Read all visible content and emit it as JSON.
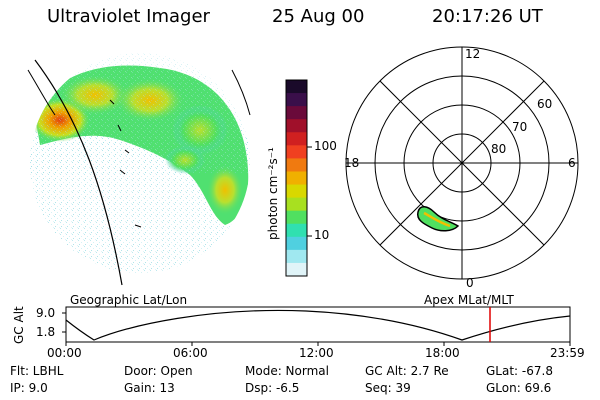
{
  "header": {
    "instrument": "Ultraviolet Imager",
    "date": "25 Aug 00",
    "time": "20:17:26 UT"
  },
  "colorbar": {
    "label": "photon cm⁻²s⁻¹",
    "ticks": [
      "100",
      "10"
    ],
    "colors": [
      "#1a0a2a",
      "#3a0f4a",
      "#6a0a3a",
      "#a0102a",
      "#d02020",
      "#f04020",
      "#f07a10",
      "#f0b000",
      "#d8d800",
      "#a8e020",
      "#50e060",
      "#30e0b0",
      "#50d0e0",
      "#a0e8f0",
      "#e0f4f8"
    ]
  },
  "polar": {
    "mlt_labels": [
      "12",
      "18",
      "6",
      "0"
    ],
    "lat_labels": [
      "60",
      "70",
      "80"
    ]
  },
  "map_labels": {
    "left": "Geographic Lat/Lon",
    "right": "Apex MLat/MLT"
  },
  "timeline": {
    "axis_label": "GC Alt",
    "y_ticks": [
      "9.0",
      "1.8"
    ],
    "x_ticks": [
      "00:00",
      "06:00",
      "12:00",
      "18:00",
      "23:59"
    ],
    "marker_color": "#e00000"
  },
  "status": {
    "flt": "Flt: LBHL",
    "ip": "IP:  9.0",
    "door": "Door: Open",
    "gain": "Gain: 13",
    "mode": "Mode: Normal",
    "dsp": "Dsp:    -6.5",
    "gcalt": "GC Alt: 2.7 Re",
    "seq": "Seq: 39",
    "glat": "GLat: -67.8",
    "glon": "GLon:  69.6"
  }
}
